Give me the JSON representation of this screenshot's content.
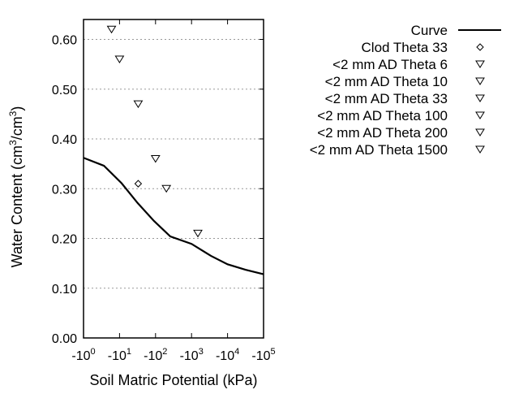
{
  "chart_data": {
    "type": "scatter",
    "xlabel": "Soil Matric Potential (kPa)",
    "ylabel_parts": [
      "Water Content (cm",
      "3",
      "/cm",
      "3",
      ")"
    ],
    "x_scale": "log",
    "xlim": [
      1,
      100000
    ],
    "ylim": [
      0,
      0.64
    ],
    "grid": "horizontal dotted",
    "legend_placement": "right",
    "x_ticks": [
      {
        "base": "-10",
        "exp": "0",
        "value": 1
      },
      {
        "base": "-10",
        "exp": "1",
        "value": 10
      },
      {
        "base": "-10",
        "exp": "2",
        "value": 100
      },
      {
        "base": "-10",
        "exp": "3",
        "value": 1000
      },
      {
        "base": "-10",
        "exp": "4",
        "value": 10000
      },
      {
        "base": "-10",
        "exp": "5",
        "value": 100000
      }
    ],
    "y_ticks": [
      {
        "label": "0.00",
        "value": 0
      },
      {
        "label": "0.10",
        "value": 0.1
      },
      {
        "label": "0.20",
        "value": 0.2
      },
      {
        "label": "0.30",
        "value": 0.3
      },
      {
        "label": "0.40",
        "value": 0.4
      },
      {
        "label": "0.50",
        "value": 0.5
      },
      {
        "label": "0.60",
        "value": 0.6
      }
    ],
    "series": [
      {
        "name": "Curve",
        "kind": "line",
        "color": "#000000",
        "x": [
          1,
          3.7,
          11.4,
          32,
          91,
          257,
          1000,
          3450,
          10000,
          31600,
          100000
        ],
        "y": [
          0.362,
          0.346,
          0.311,
          0.271,
          0.235,
          0.204,
          0.189,
          0.165,
          0.148,
          0.137,
          0.128
        ]
      },
      {
        "name": "Clod Theta 33",
        "kind": "point",
        "marker": "diamond",
        "x": [
          33
        ],
        "y": [
          0.31
        ]
      },
      {
        "name": "<2 mm AD Theta 6",
        "kind": "point",
        "marker": "triangle-down",
        "x": [
          6
        ],
        "y": [
          0.62
        ]
      },
      {
        "name": "<2 mm AD Theta 10",
        "kind": "point",
        "marker": "triangle-down",
        "x": [
          10
        ],
        "y": [
          0.56
        ]
      },
      {
        "name": "<2 mm AD Theta 33",
        "kind": "point",
        "marker": "triangle-down",
        "x": [
          33
        ],
        "y": [
          0.47
        ]
      },
      {
        "name": "<2 mm AD Theta 100",
        "kind": "point",
        "marker": "triangle-down",
        "x": [
          100
        ],
        "y": [
          0.36
        ]
      },
      {
        "name": "<2 mm AD Theta 200",
        "kind": "point",
        "marker": "triangle-down",
        "x": [
          200
        ],
        "y": [
          0.3
        ]
      },
      {
        "name": "<2 mm AD Theta 1500",
        "kind": "point",
        "marker": "triangle-down",
        "x": [
          1500
        ],
        "y": [
          0.21
        ]
      }
    ]
  }
}
